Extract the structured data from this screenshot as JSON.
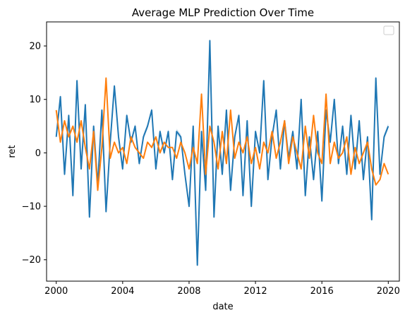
{
  "chart_data": {
    "type": "line",
    "title": "Average MLP Prediction Over Time",
    "xlabel": "date",
    "ylabel": "ret",
    "xlim": [
      "1999-06-01",
      "2020-09-01"
    ],
    "ylim": [
      -24,
      24.5
    ],
    "x_ticks": [
      "2000",
      "2004",
      "2008",
      "2012",
      "2016",
      "2020"
    ],
    "y_ticks": [
      -20,
      -10,
      0,
      10,
      20
    ],
    "grid": false,
    "legend": {
      "placement": "top-right",
      "entries": []
    },
    "series": [
      {
        "color": "#1f77b4",
        "band": true,
        "x": [
          "2000-01",
          "2000-04",
          "2000-07",
          "2000-10",
          "2001-01",
          "2001-04",
          "2001-07",
          "2001-10",
          "2002-01",
          "2002-04",
          "2002-07",
          "2002-10",
          "2003-01",
          "2003-04",
          "2003-07",
          "2003-10",
          "2004-01",
          "2004-04",
          "2004-07",
          "2004-10",
          "2005-01",
          "2005-04",
          "2005-07",
          "2005-10",
          "2006-01",
          "2006-04",
          "2006-07",
          "2006-10",
          "2007-01",
          "2007-04",
          "2007-07",
          "2007-10",
          "2008-01",
          "2008-04",
          "2008-07",
          "2008-10",
          "2009-01",
          "2009-04",
          "2009-07",
          "2009-10",
          "2010-01",
          "2010-04",
          "2010-07",
          "2010-10",
          "2011-01",
          "2011-04",
          "2011-07",
          "2011-10",
          "2012-01",
          "2012-04",
          "2012-07",
          "2012-10",
          "2013-01",
          "2013-04",
          "2013-07",
          "2013-10",
          "2014-01",
          "2014-04",
          "2014-07",
          "2014-10",
          "2015-01",
          "2015-04",
          "2015-07",
          "2015-10",
          "2016-01",
          "2016-04",
          "2016-07",
          "2016-10",
          "2017-01",
          "2017-04",
          "2017-07",
          "2017-10",
          "2018-01",
          "2018-04",
          "2018-07",
          "2018-10",
          "2019-01",
          "2019-04",
          "2019-07",
          "2019-10",
          "2020-01"
        ],
        "y": [
          3,
          10.5,
          -4,
          7,
          -8,
          13.5,
          -3,
          9,
          -12,
          5,
          -6,
          8,
          -11,
          2,
          12.5,
          3,
          -3,
          7,
          2,
          5,
          -2,
          3,
          5,
          8,
          -3,
          4,
          0,
          4,
          -5,
          4,
          3,
          -4,
          -10,
          5,
          -21,
          4,
          -7,
          21,
          -12,
          5,
          -4,
          8,
          -7,
          3,
          7,
          -8,
          6,
          -10,
          4,
          0,
          13.5,
          -5,
          3,
          8,
          -3,
          6,
          -1,
          4,
          -3,
          10,
          -8,
          3,
          -5,
          4,
          -9,
          8,
          2,
          10,
          -2,
          5,
          -4,
          7,
          -3,
          6,
          -5,
          3,
          -12.5,
          14,
          -4,
          3,
          5
        ]
      },
      {
        "color": "#ff7f0e",
        "band": false,
        "x": [
          "2000-01",
          "2000-04",
          "2000-07",
          "2000-10",
          "2001-01",
          "2001-04",
          "2001-07",
          "2001-10",
          "2002-01",
          "2002-04",
          "2002-07",
          "2002-10",
          "2003-01",
          "2003-04",
          "2003-07",
          "2003-10",
          "2004-01",
          "2004-04",
          "2004-07",
          "2004-10",
          "2005-01",
          "2005-04",
          "2005-07",
          "2005-10",
          "2006-01",
          "2006-04",
          "2006-07",
          "2006-10",
          "2007-01",
          "2007-04",
          "2007-07",
          "2007-10",
          "2008-01",
          "2008-04",
          "2008-07",
          "2008-10",
          "2009-01",
          "2009-04",
          "2009-07",
          "2009-10",
          "2010-01",
          "2010-04",
          "2010-07",
          "2010-10",
          "2011-01",
          "2011-04",
          "2011-07",
          "2011-10",
          "2012-01",
          "2012-04",
          "2012-07",
          "2012-10",
          "2013-01",
          "2013-04",
          "2013-07",
          "2013-10",
          "2014-01",
          "2014-04",
          "2014-07",
          "2014-10",
          "2015-01",
          "2015-04",
          "2015-07",
          "2015-10",
          "2016-01",
          "2016-04",
          "2016-07",
          "2016-10",
          "2017-01",
          "2017-04",
          "2017-07",
          "2017-10",
          "2018-01",
          "2018-04",
          "2018-07",
          "2018-10",
          "2019-01",
          "2019-04",
          "2019-07",
          "2019-10",
          "2020-01"
        ],
        "y": [
          8,
          2,
          6,
          3,
          5,
          2,
          6,
          1,
          -3,
          4,
          -7,
          1,
          14,
          -1,
          2,
          0,
          1,
          -2,
          3,
          1,
          0,
          -1,
          2,
          1,
          3,
          0,
          2,
          1,
          1,
          -1,
          2,
          0,
          -3,
          1,
          -2,
          11,
          -4,
          5,
          2,
          -3,
          4,
          -2,
          8,
          -1,
          2,
          0,
          3,
          -2,
          1,
          -3,
          2,
          0,
          4,
          -1,
          2,
          6,
          -2,
          3,
          0,
          -3,
          5,
          -1,
          7,
          0,
          -2,
          11,
          -2,
          2,
          -1,
          0,
          3,
          -4,
          1,
          -2,
          0,
          2,
          -3,
          -6,
          -5,
          -2,
          -4
        ]
      }
    ]
  }
}
